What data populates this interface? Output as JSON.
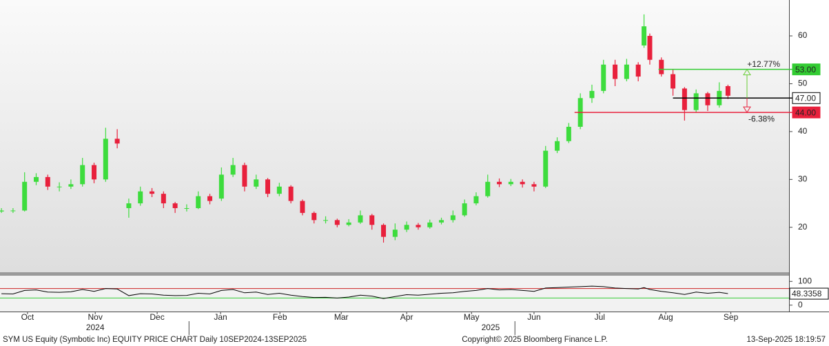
{
  "chart_data": [
    {
      "type": "candlestick",
      "x": [
        0,
        4,
        8,
        12,
        16,
        20,
        24,
        28,
        32,
        36,
        40,
        44,
        48,
        52,
        56,
        60,
        64,
        68,
        72,
        76,
        80,
        84,
        88,
        92,
        96,
        100,
        104,
        108,
        112,
        116,
        120,
        124,
        128,
        132,
        136,
        140,
        144,
        148,
        152,
        156,
        160,
        164,
        168,
        172,
        176,
        180,
        184,
        188,
        192,
        196,
        200,
        204,
        208,
        212,
        216,
        220,
        222,
        224,
        228,
        232,
        236,
        240,
        244,
        248,
        251
      ],
      "open": [
        23.3,
        23.5,
        23.5,
        29.5,
        30.5,
        28.5,
        28.5,
        29,
        33,
        30,
        38.5,
        24,
        25,
        27.5,
        27,
        25,
        24,
        24,
        26.5,
        26,
        31,
        33,
        28.5,
        30,
        27,
        28.5,
        25.5,
        23,
        21.5,
        21.5,
        20.5,
        21,
        22.5,
        20.5,
        18,
        19.5,
        20.5,
        20,
        21,
        21.5,
        22.5,
        25,
        26.5,
        29.5,
        29,
        29.5,
        29,
        28.5,
        36,
        38,
        41,
        47,
        48.5,
        54,
        51,
        54,
        58,
        60,
        55,
        52,
        49,
        44.5,
        48,
        45.5,
        49.5
      ],
      "high": [
        24,
        24,
        31.5,
        31.3,
        31,
        29.4,
        30,
        34.5,
        33.5,
        40.8,
        40.5,
        26,
        28.5,
        28.2,
        27.5,
        25.3,
        24.8,
        27.5,
        27,
        32.5,
        34.5,
        33.5,
        31,
        30.3,
        29.3,
        28.8,
        25.8,
        23.3,
        22.3,
        21.8,
        21.7,
        23.5,
        22.8,
        20.8,
        20.8,
        21.2,
        20.9,
        21.6,
        22,
        23.5,
        25.8,
        27.3,
        31,
        30.2,
        30.1,
        30,
        29.5,
        37,
        38.8,
        41.8,
        48,
        49.8,
        55,
        55,
        55.2,
        54.5,
        64.5,
        60.5,
        55.5,
        53,
        49.3,
        48.8,
        48.3,
        50.3,
        49.8
      ],
      "low": [
        23,
        23,
        23.3,
        28.8,
        27.8,
        27.5,
        28,
        28.5,
        29.2,
        29.5,
        36.5,
        22,
        24.5,
        26.3,
        24,
        23,
        23.3,
        23.8,
        24.8,
        25.5,
        30.5,
        27.5,
        28,
        26.3,
        26.5,
        25,
        22.5,
        20.8,
        20.8,
        20,
        20.2,
        20.7,
        19.5,
        16.8,
        17.3,
        19,
        19.5,
        19.7,
        20.6,
        21,
        22.2,
        24.6,
        26.2,
        28.4,
        28.6,
        28.3,
        27.5,
        28.2,
        35.5,
        37.6,
        40.5,
        46,
        48,
        49.5,
        50.5,
        50.5,
        57.5,
        54,
        51.5,
        47.5,
        42.3,
        44,
        44.3,
        45,
        46.8
      ],
      "close": [
        23.5,
        23.5,
        29.5,
        30.5,
        28.5,
        28.5,
        29,
        33,
        30,
        38.5,
        37.5,
        25,
        27.5,
        27,
        25,
        24,
        24,
        26.5,
        25.5,
        31,
        33,
        28.5,
        30,
        27,
        28.5,
        25.5,
        23,
        21.5,
        21.5,
        20.5,
        21,
        22.5,
        20.5,
        18,
        19.5,
        20.5,
        20,
        21,
        21.5,
        22.5,
        25,
        26.5,
        29.5,
        29,
        29.5,
        29,
        28.5,
        36,
        38,
        41,
        47,
        48.5,
        54,
        51,
        54,
        51.5,
        62,
        55,
        52,
        49,
        44.5,
        48,
        45.5,
        48.5,
        47.5
      ],
      "up_color": "#3ddc3d",
      "down_color": "#e8203c",
      "xlim": [
        -0.5,
        272.1
      ],
      "ylim": [
        10.6,
        67.5
      ],
      "yticks": [
        20,
        30,
        40,
        50,
        60
      ],
      "xticks": [
        {
          "value": 9,
          "label": "Oct"
        },
        {
          "value": 32.4,
          "label": "Nov"
        },
        {
          "value": 53.8,
          "label": "Dec"
        },
        {
          "value": 75.7,
          "label": "Jan"
        },
        {
          "value": 96.2,
          "label": "Feb"
        },
        {
          "value": 117.4,
          "label": "Mar"
        },
        {
          "value": 140,
          "label": "Apr"
        },
        {
          "value": 162.4,
          "label": "May"
        },
        {
          "value": 184,
          "label": "Jun"
        },
        {
          "value": 206.7,
          "label": "Jul"
        },
        {
          "value": 229.5,
          "label": "Aug"
        },
        {
          "value": 252,
          "label": "Sep"
        }
      ],
      "year_labels": [
        {
          "value": 32.4,
          "label": "2024"
        },
        {
          "value": 169,
          "label": "2025"
        }
      ],
      "year_ticks": [
        64.8,
        177.4
      ],
      "levels": [
        {
          "value": 53,
          "label": "53.00",
          "color": "#33cc33",
          "start": 227
        },
        {
          "value": 47,
          "label": "47.00",
          "color": "#000000",
          "start": 232
        },
        {
          "value": 44,
          "label": "44.00",
          "color": "#e8203c",
          "start": 198
        }
      ],
      "annotations": [
        {
          "text": "+12.77%",
          "color": "#66cc33"
        },
        {
          "text": "-6.38%",
          "color": "#e8203c"
        }
      ]
    },
    {
      "type": "line",
      "x": [
        0,
        4,
        8,
        12,
        16,
        20,
        24,
        28,
        32,
        36,
        40,
        44,
        48,
        52,
        56,
        60,
        64,
        68,
        72,
        76,
        80,
        84,
        88,
        92,
        96,
        100,
        104,
        108,
        112,
        116,
        120,
        124,
        128,
        132,
        136,
        140,
        144,
        148,
        152,
        156,
        160,
        164,
        168,
        172,
        176,
        180,
        184,
        188,
        192,
        196,
        200,
        204,
        208,
        212,
        216,
        220,
        222,
        224,
        228,
        232,
        236,
        240,
        244,
        248,
        251
      ],
      "values": [
        48,
        47,
        62,
        64,
        55,
        54,
        56,
        66,
        58,
        70,
        68,
        40,
        48,
        47,
        42,
        40,
        41,
        50,
        47,
        62,
        66,
        52,
        55,
        45,
        50,
        42,
        36,
        32,
        33,
        30,
        34,
        42,
        38,
        28,
        36,
        44,
        42,
        46,
        50,
        52,
        58,
        62,
        70,
        64,
        66,
        62,
        58,
        72,
        74,
        76,
        78,
        80,
        78,
        72,
        70,
        68,
        74,
        66,
        58,
        52,
        45,
        55,
        50,
        54,
        48.3358
      ],
      "color": "#000000",
      "xlim": [
        -0.5,
        272.1
      ],
      "ylim": [
        -27,
        124
      ],
      "yticks": [
        0,
        100
      ],
      "levels": [
        {
          "value": 70,
          "color": "#cc2222"
        },
        {
          "value": 30,
          "color": "#33cc33"
        }
      ]
    }
  ],
  "footer": {
    "left": "SYM US Equity (Symbotic Inc) EQUITY PRICE CHART  Daily 10SEP2024-13SEP2025",
    "center": "Copyright© 2025 Bloomberg Finance L.P.",
    "right": "13-Sep-2025 18:19:57"
  }
}
